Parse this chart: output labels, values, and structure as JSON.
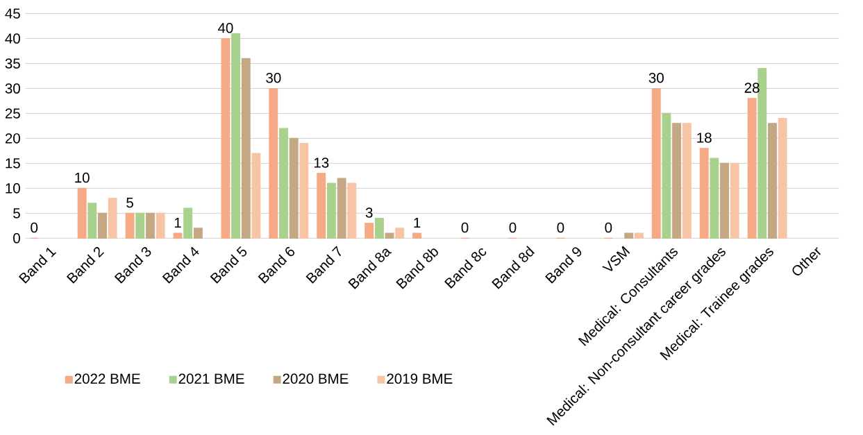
{
  "chart_data": {
    "type": "bar",
    "categories": [
      "Band 1",
      "Band 2",
      "Band 3",
      "Band 4",
      "Band 5",
      "Band 6",
      "Band 7",
      "Band 8a",
      "Band 8b",
      "Band 8c",
      "Band 8d",
      "Band 9",
      "VSM",
      "Medical: Consultants",
      "Medical: Non-consultant career grades",
      "Medical: Trainee grades",
      "Other"
    ],
    "series": [
      {
        "name": "2022 BME",
        "color": "#f6a985",
        "values": [
          0,
          10,
          5,
          1,
          40,
          30,
          13,
          3,
          1,
          0,
          0,
          0,
          0,
          30,
          18,
          28,
          null
        ],
        "value_labels": [
          "0",
          "10",
          "5",
          "1",
          "40",
          "30",
          "13",
          "3",
          "1",
          "0",
          "0",
          "0",
          "0",
          "30",
          "18",
          "28",
          null
        ]
      },
      {
        "name": "2021 BME",
        "color": "#a9d18e",
        "values": [
          null,
          7,
          5,
          6,
          41,
          22,
          11,
          4,
          null,
          null,
          null,
          null,
          null,
          25,
          16,
          34,
          null
        ]
      },
      {
        "name": "2020 BME",
        "color": "#c4a884",
        "values": [
          null,
          5,
          5,
          2,
          36,
          20,
          12,
          1,
          null,
          null,
          null,
          null,
          1,
          23,
          15,
          23,
          null
        ]
      },
      {
        "name": "2019 BME",
        "color": "#f8c4a6",
        "values": [
          null,
          8,
          5,
          null,
          17,
          19,
          11,
          2,
          null,
          null,
          null,
          null,
          1,
          23,
          15,
          24,
          null
        ]
      }
    ],
    "ylim": [
      0,
      45
    ],
    "yticks": [
      0,
      5,
      10,
      15,
      20,
      25,
      30,
      35,
      40,
      45
    ],
    "grid": "y",
    "legend": "bottom left"
  }
}
